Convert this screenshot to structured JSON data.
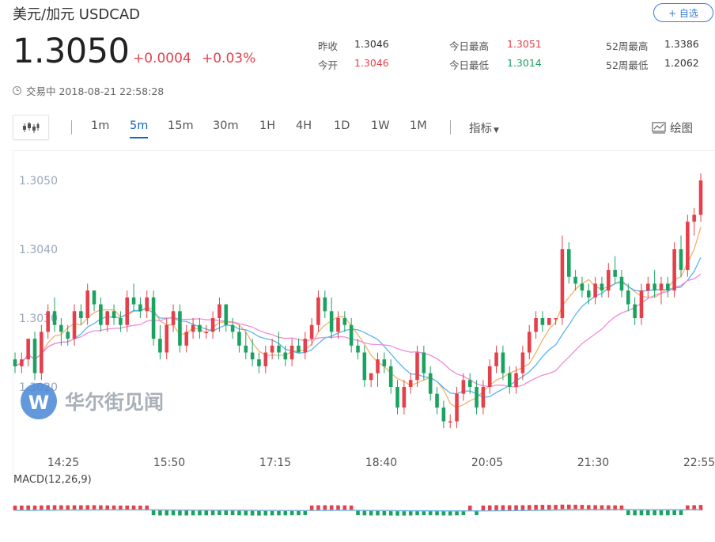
{
  "header": {
    "title": "美元/加元  USDCAD",
    "watch_label": "+ 自选"
  },
  "quote": {
    "price": "1.3050",
    "change": "+0.0004",
    "change_pct": "+0.03%"
  },
  "stats": [
    {
      "label": "昨收",
      "value": "1.3046",
      "color": "neutral"
    },
    {
      "label": "今日最高",
      "value": "1.3051",
      "color": "red"
    },
    {
      "label": "52周最高",
      "value": "1.3386",
      "color": "neutral"
    },
    {
      "label": "今开",
      "value": "1.3046",
      "color": "red"
    },
    {
      "label": "今日最低",
      "value": "1.3014",
      "color": "green"
    },
    {
      "label": "52周最低",
      "value": "1.2062",
      "color": "neutral"
    }
  ],
  "status": {
    "text": "交易中 2018-08-21 22:58:28"
  },
  "toolbar": {
    "timeframes": [
      "1m",
      "5m",
      "15m",
      "30m",
      "1H",
      "4H",
      "1D",
      "1W",
      "1M"
    ],
    "active": "5m",
    "indicator_label": "指标",
    "draw_label": "绘图"
  },
  "watermark": {
    "text": "华尔街见闻"
  },
  "macd": {
    "label": "MACD(12,26,9)"
  },
  "colors": {
    "up": "#e5404a",
    "down": "#1aa260",
    "accent": "#1565c0",
    "ma1": "#f5b06a",
    "ma2": "#5ab4f0",
    "ma3": "#f08ad8",
    "axis_text": "#9aa7bd"
  },
  "chart_data": {
    "type": "candlestick",
    "ylabels": [
      "1.3050",
      "1.3040",
      "1.3030",
      "1.3020"
    ],
    "y_tick_values": [
      1.305,
      1.304,
      1.303,
      1.302
    ],
    "xlabels": [
      "14:25",
      "15:50",
      "17:15",
      "18:40",
      "20:05",
      "21:30",
      "22:55"
    ],
    "candles": [
      [
        1.3024,
        1.3025,
        1.3022,
        1.3023
      ],
      [
        1.3023,
        1.3025,
        1.3022,
        1.3024
      ],
      [
        1.3024,
        1.3027,
        1.3023,
        1.3027
      ],
      [
        1.3027,
        1.3028,
        1.3021,
        1.3022
      ],
      [
        1.3022,
        1.3029,
        1.3021,
        1.3028
      ],
      [
        1.3028,
        1.3032,
        1.3027,
        1.3031
      ],
      [
        1.3031,
        1.3033,
        1.3028,
        1.3029
      ],
      [
        1.3029,
        1.303,
        1.3026,
        1.3028
      ],
      [
        1.3028,
        1.3029,
        1.3026,
        1.3027
      ],
      [
        1.3027,
        1.3032,
        1.3026,
        1.3031
      ],
      [
        1.3031,
        1.3032,
        1.3029,
        1.303
      ],
      [
        1.303,
        1.3035,
        1.3029,
        1.3034
      ],
      [
        1.3034,
        1.3034,
        1.3031,
        1.3032
      ],
      [
        1.3032,
        1.3033,
        1.3028,
        1.3029
      ],
      [
        1.3029,
        1.3031,
        1.3028,
        1.3031
      ],
      [
        1.3031,
        1.3032,
        1.3029,
        1.303
      ],
      [
        1.303,
        1.3031,
        1.3028,
        1.3029
      ],
      [
        1.3029,
        1.3034,
        1.3028,
        1.3033
      ],
      [
        1.3033,
        1.3035,
        1.3031,
        1.3032
      ],
      [
        1.3032,
        1.3033,
        1.303,
        1.3031
      ],
      [
        1.3031,
        1.3034,
        1.303,
        1.3033
      ],
      [
        1.3033,
        1.3034,
        1.3026,
        1.3027
      ],
      [
        1.3027,
        1.3029,
        1.3024,
        1.3025
      ],
      [
        1.3025,
        1.303,
        1.3024,
        1.3029
      ],
      [
        1.3029,
        1.3032,
        1.3028,
        1.3031
      ],
      [
        1.3031,
        1.3032,
        1.3025,
        1.3026
      ],
      [
        1.3026,
        1.3029,
        1.3025,
        1.3028
      ],
      [
        1.3028,
        1.303,
        1.3027,
        1.3029
      ],
      [
        1.3029,
        1.303,
        1.3027,
        1.3028
      ],
      [
        1.3028,
        1.3029,
        1.3027,
        1.3028
      ],
      [
        1.3028,
        1.3031,
        1.3027,
        1.303
      ],
      [
        1.303,
        1.3033,
        1.3028,
        1.3032
      ],
      [
        1.3032,
        1.3032,
        1.3028,
        1.3029
      ],
      [
        1.3029,
        1.303,
        1.3027,
        1.3028
      ],
      [
        1.3028,
        1.3029,
        1.3025,
        1.3026
      ],
      [
        1.3026,
        1.3028,
        1.3024,
        1.3025
      ],
      [
        1.3025,
        1.3027,
        1.3023,
        1.3024
      ],
      [
        1.3024,
        1.3025,
        1.3022,
        1.3023
      ],
      [
        1.3023,
        1.3026,
        1.3022,
        1.3025
      ],
      [
        1.3025,
        1.3027,
        1.3024,
        1.3026
      ],
      [
        1.3026,
        1.3028,
        1.3024,
        1.3025
      ],
      [
        1.3025,
        1.3026,
        1.3023,
        1.3024
      ],
      [
        1.3024,
        1.3027,
        1.3023,
        1.3026
      ],
      [
        1.3026,
        1.3027,
        1.3025,
        1.3025
      ],
      [
        1.3025,
        1.3028,
        1.3024,
        1.3027
      ],
      [
        1.3027,
        1.303,
        1.3026,
        1.3029
      ],
      [
        1.3029,
        1.3034,
        1.3028,
        1.3033
      ],
      [
        1.3033,
        1.3034,
        1.303,
        1.3031
      ],
      [
        1.3031,
        1.3033,
        1.3027,
        1.3028
      ],
      [
        1.3028,
        1.3031,
        1.3027,
        1.303
      ],
      [
        1.303,
        1.3031,
        1.3028,
        1.3029
      ],
      [
        1.3029,
        1.303,
        1.3025,
        1.3026
      ],
      [
        1.3026,
        1.3027,
        1.3024,
        1.3025
      ],
      [
        1.3025,
        1.3026,
        1.302,
        1.3021
      ],
      [
        1.3021,
        1.3022,
        1.302,
        1.3022
      ],
      [
        1.3022,
        1.3025,
        1.302,
        1.3024
      ],
      [
        1.3024,
        1.3025,
        1.3022,
        1.3023
      ],
      [
        1.3023,
        1.3024,
        1.3019,
        1.302
      ],
      [
        1.302,
        1.3021,
        1.3016,
        1.3017
      ],
      [
        1.3017,
        1.3021,
        1.3016,
        1.302
      ],
      [
        1.302,
        1.3022,
        1.3019,
        1.3021
      ],
      [
        1.3021,
        1.3026,
        1.302,
        1.3025
      ],
      [
        1.3025,
        1.3026,
        1.3021,
        1.3022
      ],
      [
        1.3022,
        1.3023,
        1.3018,
        1.3019
      ],
      [
        1.3019,
        1.302,
        1.3016,
        1.3017
      ],
      [
        1.3017,
        1.3018,
        1.3014,
        1.3015
      ],
      [
        1.3015,
        1.3016,
        1.3014,
        1.3015
      ],
      [
        1.3015,
        1.302,
        1.3014,
        1.3019
      ],
      [
        1.3019,
        1.3022,
        1.3018,
        1.3021
      ],
      [
        1.3021,
        1.3022,
        1.3019,
        1.302
      ],
      [
        1.302,
        1.3021,
        1.3016,
        1.3017
      ],
      [
        1.3017,
        1.3021,
        1.3016,
        1.302
      ],
      [
        1.302,
        1.3024,
        1.3019,
        1.3023
      ],
      [
        1.3023,
        1.3026,
        1.3022,
        1.3025
      ],
      [
        1.3025,
        1.3026,
        1.3021,
        1.3022
      ],
      [
        1.3022,
        1.3023,
        1.3019,
        1.302
      ],
      [
        1.302,
        1.3023,
        1.3019,
        1.3022
      ],
      [
        1.3022,
        1.3026,
        1.3021,
        1.3025
      ],
      [
        1.3025,
        1.3029,
        1.3024,
        1.3028
      ],
      [
        1.3028,
        1.3031,
        1.3027,
        1.303
      ],
      [
        1.303,
        1.3031,
        1.3028,
        1.3029
      ],
      [
        1.3029,
        1.303,
        1.3029,
        1.303
      ],
      [
        1.303,
        1.303,
        1.3029,
        1.303
      ],
      [
        1.303,
        1.3042,
        1.3029,
        1.304
      ],
      [
        1.304,
        1.3041,
        1.3035,
        1.3036
      ],
      [
        1.3036,
        1.3037,
        1.3034,
        1.3035
      ],
      [
        1.3035,
        1.3036,
        1.3033,
        1.3034
      ],
      [
        1.3034,
        1.3035,
        1.3032,
        1.3033
      ],
      [
        1.3033,
        1.3036,
        1.3032,
        1.3035
      ],
      [
        1.3035,
        1.3036,
        1.3033,
        1.3034
      ],
      [
        1.3034,
        1.3038,
        1.3033,
        1.3037
      ],
      [
        1.3037,
        1.3039,
        1.3035,
        1.3036
      ],
      [
        1.3036,
        1.3037,
        1.3033,
        1.3034
      ],
      [
        1.3034,
        1.3035,
        1.3031,
        1.3032
      ],
      [
        1.3032,
        1.3033,
        1.3029,
        1.303
      ],
      [
        1.303,
        1.3035,
        1.3029,
        1.3034
      ],
      [
        1.3034,
        1.3036,
        1.3033,
        1.3035
      ],
      [
        1.3035,
        1.3037,
        1.3033,
        1.3034
      ],
      [
        1.3034,
        1.3036,
        1.3032,
        1.3035
      ],
      [
        1.3035,
        1.3036,
        1.3033,
        1.3034
      ],
      [
        1.3034,
        1.3041,
        1.3033,
        1.304
      ],
      [
        1.304,
        1.3042,
        1.3036,
        1.3037
      ],
      [
        1.3037,
        1.3045,
        1.3036,
        1.3044
      ],
      [
        1.3044,
        1.3046,
        1.3042,
        1.3045
      ],
      [
        1.3045,
        1.3051,
        1.3044,
        1.305
      ]
    ],
    "macd_label": "MACD(12,26,9)"
  }
}
